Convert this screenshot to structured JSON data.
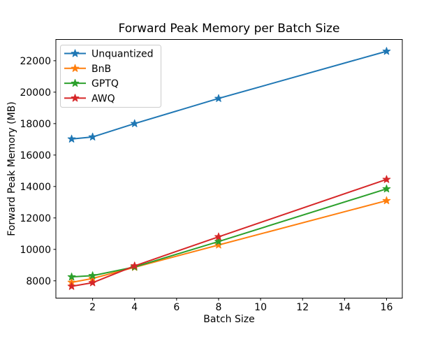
{
  "chart_data": {
    "type": "line",
    "title": "Forward Peak Memory per Batch Size",
    "xlabel": "Batch Size",
    "ylabel": "Forward Peak Memory (MB)",
    "x": [
      1,
      2,
      4,
      8,
      16
    ],
    "series": [
      {
        "name": "Unquantized",
        "color": "#1f77b4",
        "marker": "star",
        "values": [
          17020,
          17150,
          18000,
          19600,
          22600
        ]
      },
      {
        "name": "BnB",
        "color": "#ff7f0e",
        "marker": "star",
        "values": [
          7900,
          8150,
          8860,
          10280,
          13100
        ]
      },
      {
        "name": "GPTQ",
        "color": "#2ca02c",
        "marker": "star",
        "values": [
          8250,
          8330,
          8880,
          10500,
          13850
        ]
      },
      {
        "name": "AWQ",
        "color": "#d62728",
        "marker": "star",
        "values": [
          7650,
          7880,
          8950,
          10800,
          14450
        ]
      }
    ],
    "xlim": [
      0.25,
      16.75
    ],
    "ylim": [
      6900,
      23350
    ],
    "xticks": [
      2,
      4,
      6,
      8,
      10,
      12,
      14,
      16
    ],
    "yticks": [
      8000,
      10000,
      12000,
      14000,
      16000,
      18000,
      20000,
      22000
    ],
    "grid": false,
    "legend_position": "upper left",
    "background_color": "#ffffff",
    "spine_color": "#000000",
    "legend_border_color": "#cccccc"
  }
}
